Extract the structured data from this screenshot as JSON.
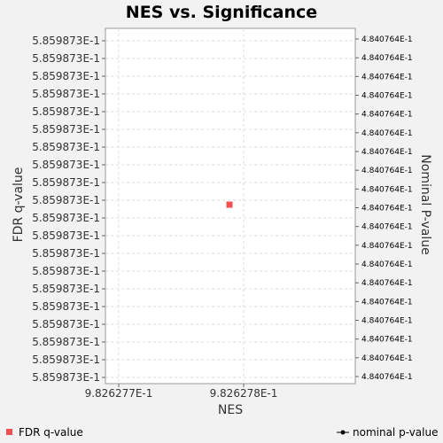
{
  "chart_data": {
    "type": "scatter",
    "title": "NES vs. Significance",
    "xlabel": "NES",
    "ylabel": "FDR q-value",
    "y2label": "Nominal P-value",
    "x_ticks": [
      "9.826277E-1",
      "9.826278E-1"
    ],
    "y_tick_label": "5.859873E-1",
    "y_tick_count": 20,
    "y2_tick_label": "4.840764E-1",
    "y2_tick_count": 19,
    "grid": true,
    "series": [
      {
        "name": "FDR q-value",
        "color": "#f05050",
        "marker": "square",
        "x": [
          0.9826278
        ],
        "y": [
          0.5859873
        ]
      }
    ],
    "legend": {
      "left": "FDR q-value",
      "right": "nominal p-value"
    }
  }
}
